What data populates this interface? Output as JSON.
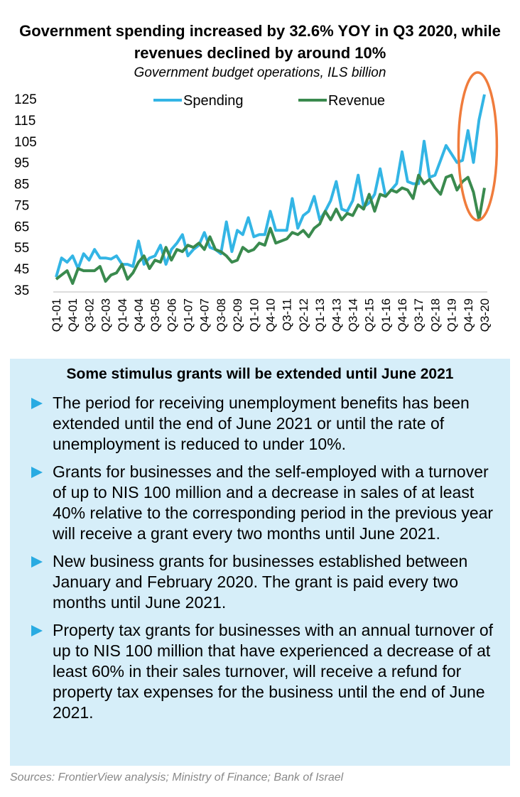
{
  "chart_data": {
    "type": "line",
    "title": "Government spending increased by 32.6% YOY in Q3 2020, while revenues declined by around 10%",
    "subtitle": "Government budget operations, ILS billion",
    "ylim": [
      35,
      125
    ],
    "yticks": [
      35,
      45,
      55,
      65,
      75,
      85,
      95,
      105,
      115,
      125
    ],
    "legend": "top",
    "grid": false,
    "x": [
      "Q1-01",
      "Q2-01",
      "Q3-01",
      "Q4-01",
      "Q1-02",
      "Q2-02",
      "Q3-02",
      "Q4-02",
      "Q1-03",
      "Q2-03",
      "Q3-03",
      "Q4-03",
      "Q1-04",
      "Q2-04",
      "Q3-04",
      "Q4-04",
      "Q1-05",
      "Q2-05",
      "Q3-05",
      "Q4-05",
      "Q1-06",
      "Q2-06",
      "Q3-06",
      "Q4-06",
      "Q1-07",
      "Q2-07",
      "Q3-07",
      "Q4-07",
      "Q1-08",
      "Q2-08",
      "Q3-08",
      "Q4-08",
      "Q1-09",
      "Q2-09",
      "Q3-09",
      "Q4-09",
      "Q1-10",
      "Q2-10",
      "Q3-10",
      "Q4-10",
      "Q1-11",
      "Q2-11",
      "Q3-11",
      "Q4-11",
      "Q1-12",
      "Q2-12",
      "Q3-12",
      "Q4-12",
      "Q1-13",
      "Q2-13",
      "Q3-13",
      "Q4-13",
      "Q1-14",
      "Q2-14",
      "Q3-14",
      "Q4-14",
      "Q1-15",
      "Q2-15",
      "Q3-15",
      "Q4-15",
      "Q1-16",
      "Q2-16",
      "Q3-16",
      "Q4-16",
      "Q1-17",
      "Q2-17",
      "Q3-17",
      "Q4-17",
      "Q1-18",
      "Q2-18",
      "Q3-18",
      "Q4-18",
      "Q1-19",
      "Q2-19",
      "Q3-19",
      "Q4-19",
      "Q1-20",
      "Q2-20",
      "Q3-20"
    ],
    "series": [
      {
        "name": "Spending",
        "color": "#33b5e5",
        "values": [
          41,
          50,
          48,
          51,
          45,
          52,
          49,
          54,
          50,
          50,
          49.5,
          51,
          47,
          47,
          46,
          58,
          47,
          50,
          51,
          56,
          47,
          54,
          57,
          61,
          51,
          54,
          56,
          62,
          55,
          54,
          52,
          67,
          53,
          63,
          61,
          69,
          60,
          61,
          61,
          72,
          63,
          63,
          63,
          78,
          64,
          70,
          72,
          79,
          68,
          72,
          77,
          86,
          73,
          72,
          77,
          89,
          74,
          76,
          80,
          92,
          79,
          82,
          85,
          100,
          86,
          85,
          85,
          105,
          88,
          89,
          96,
          103,
          99,
          95,
          96,
          110,
          95,
          115,
          127
        ]
      },
      {
        "name": "Revenue",
        "color": "#3a8a4e",
        "values": [
          40,
          42,
          44,
          38,
          45,
          44,
          44,
          44,
          46,
          39,
          42,
          43,
          47,
          40,
          43,
          48,
          51,
          45,
          49,
          48,
          55,
          49,
          54,
          53,
          56,
          55,
          57,
          54,
          60,
          54,
          53,
          51,
          48,
          49,
          55,
          53,
          54,
          57,
          56,
          64,
          57,
          58,
          59,
          62,
          61,
          63,
          60,
          64,
          66,
          72,
          68,
          73,
          68,
          71,
          70,
          75,
          73,
          80,
          72,
          80,
          79,
          82,
          81,
          83,
          82,
          78,
          89,
          85,
          87,
          83,
          80,
          88,
          89,
          82,
          86,
          88,
          81,
          68,
          83
        ]
      }
    ],
    "annotation": {
      "type": "ellipse",
      "color": "#f07c3c",
      "around": [
        "Q4-19",
        "Q3-20"
      ]
    }
  },
  "box": {
    "title": "Some stimulus grants will be extended until June 2021",
    "bullets": [
      "The period for receiving unemployment benefits has been extended until the end of June 2021 or until the rate of unemployment is reduced to under 10%.",
      "Grants for businesses and the self-employed with a turnover of up to NIS 100 million and a decrease in sales of at least 40% relative to the corresponding period in the previous year will receive a grant every two months until June 2021.",
      "New business grants for businesses established between January and February 2020. The grant is paid every two months until June 2021.",
      "Property tax grants for businesses with an annual turnover of up to NIS 100 million that have experienced a decrease of at least 60% in their sales turnover, will receive a refund for property tax expenses for the business until the end of June 2021."
    ]
  },
  "source": "Sources: FrontierView analysis; Ministry of Finance; Bank of Israel"
}
